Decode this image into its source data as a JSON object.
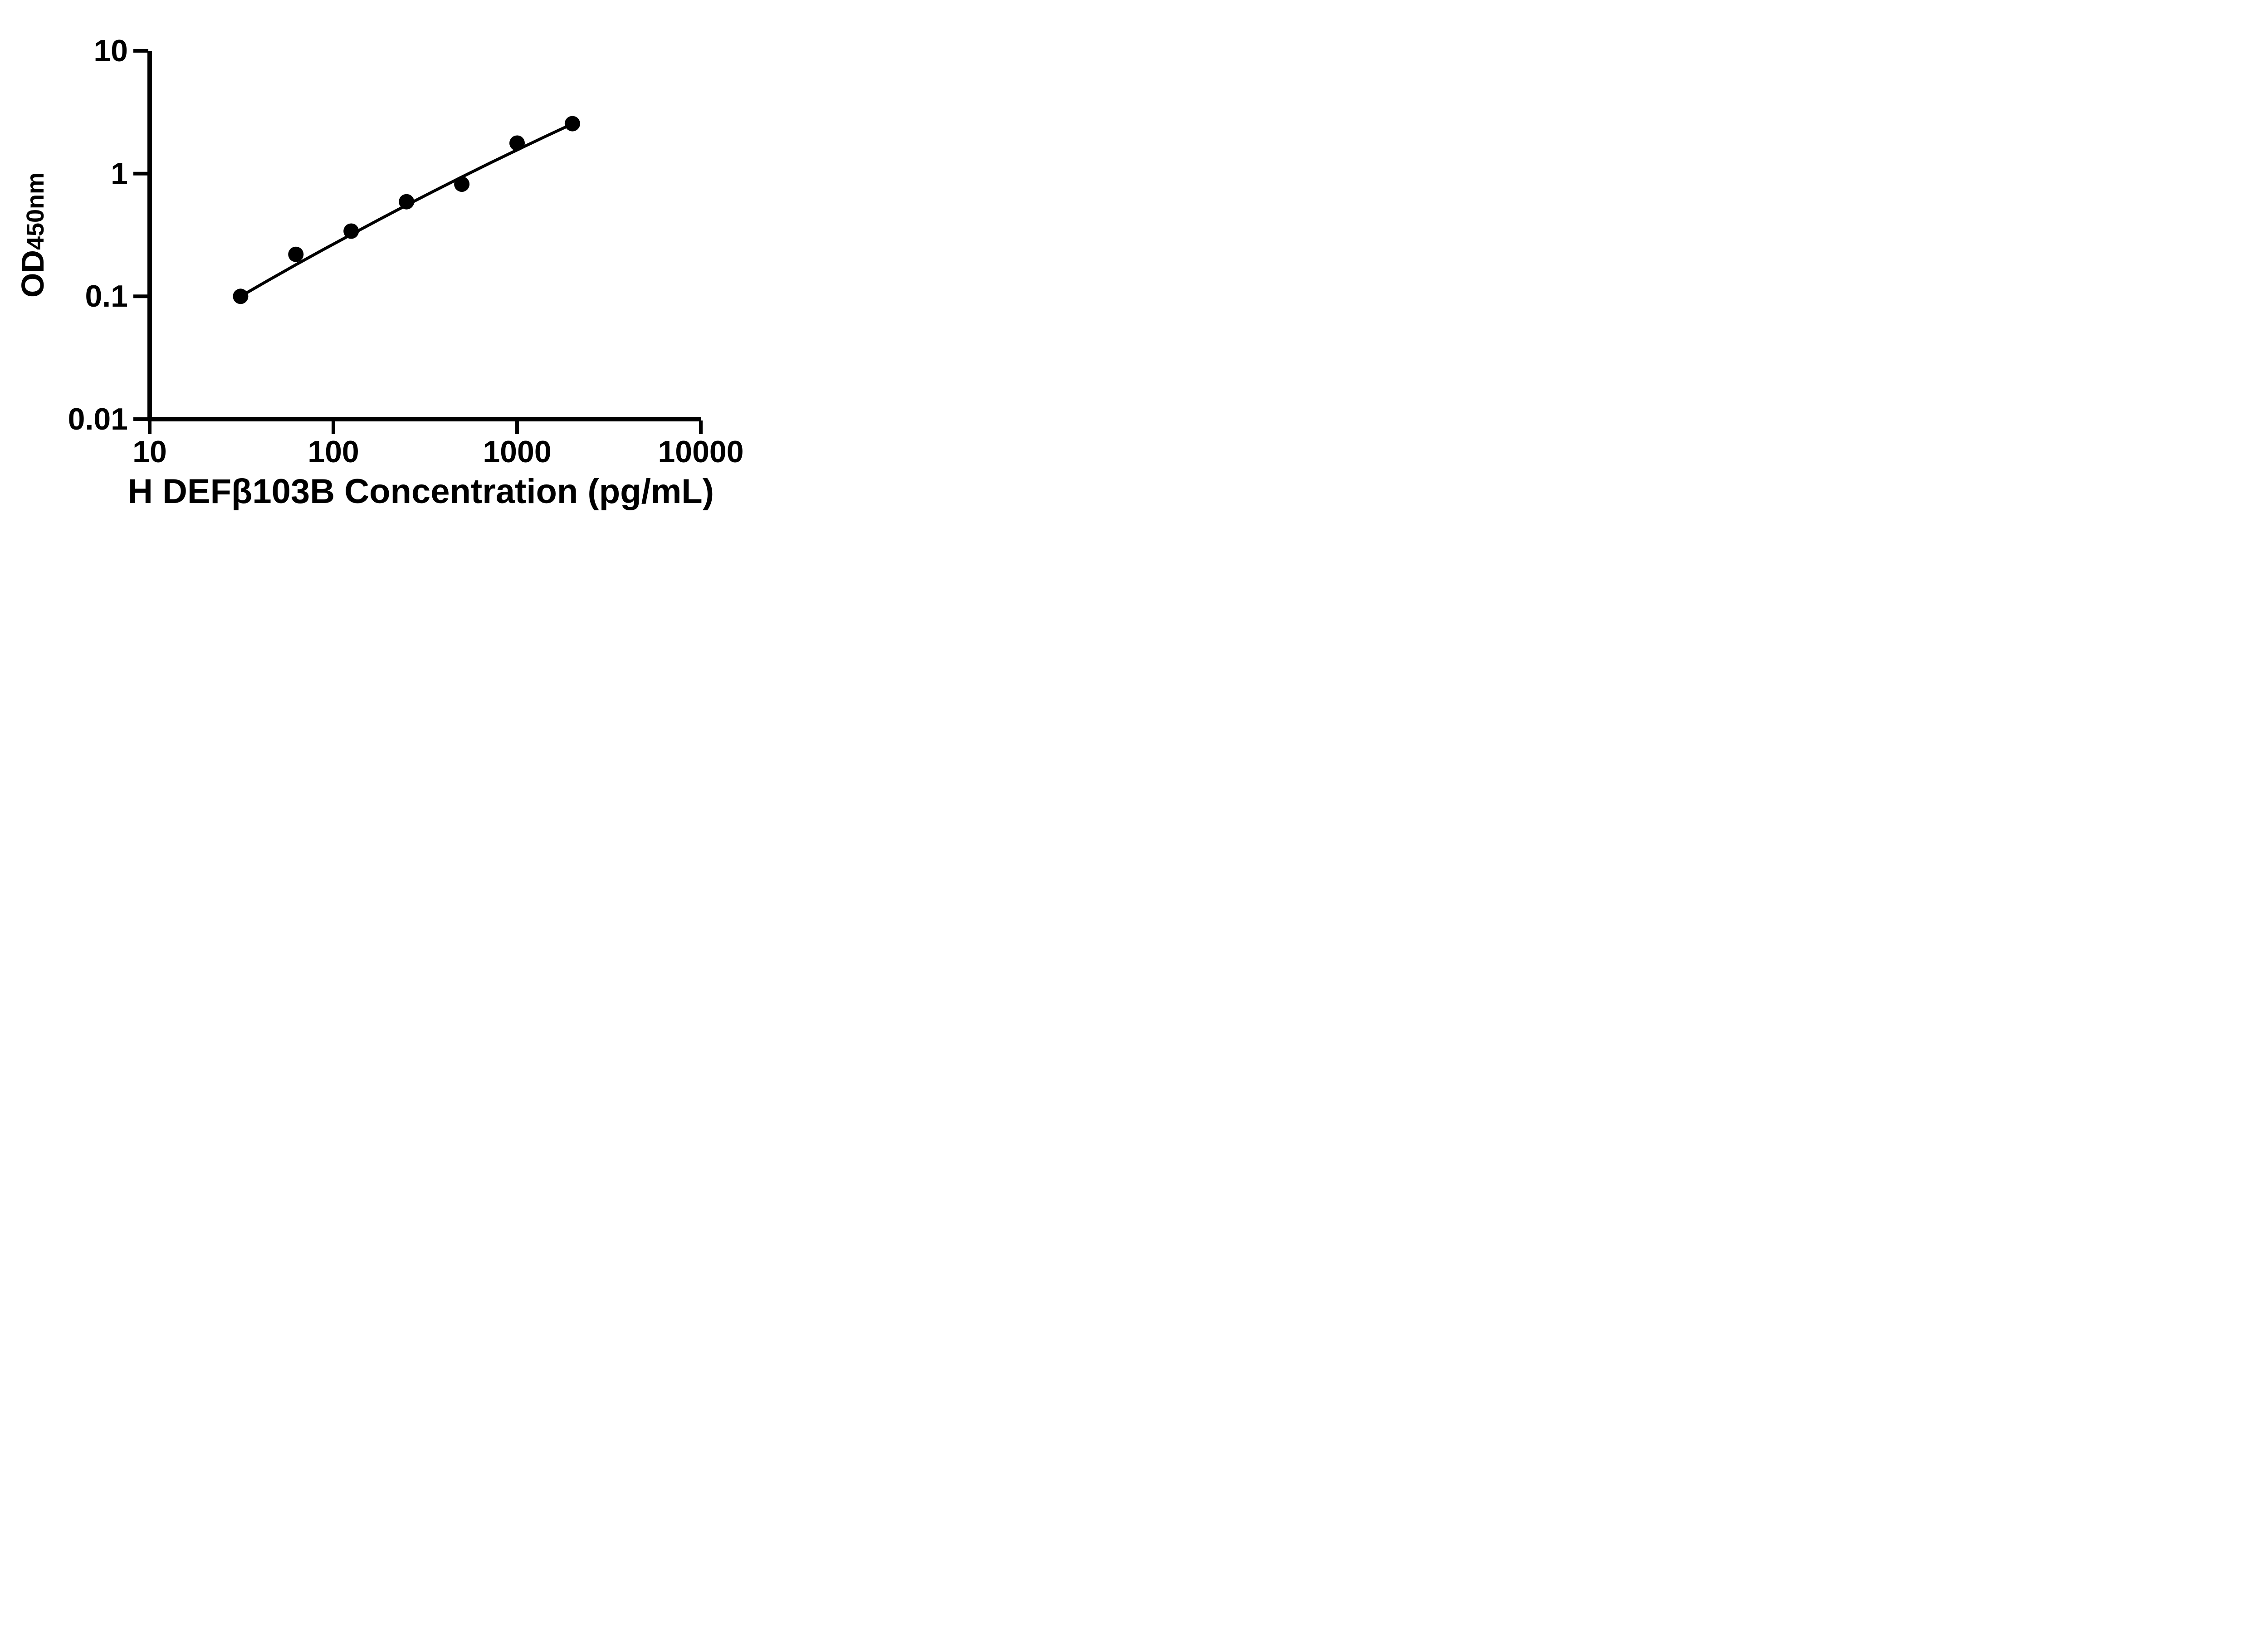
{
  "page": {
    "background_color": "#ffffff",
    "ink_color": "#000000"
  },
  "chart_data": {
    "type": "scatter",
    "title": "",
    "xlabel": "H DEFβ103B Concentration (pg/mL)",
    "ylabel": "OD450nm",
    "ylabel_main": "OD",
    "ylabel_sub": "450nm",
    "x_scale": "log10",
    "y_scale": "log10",
    "xlim": [
      10,
      10000
    ],
    "ylim": [
      0.01,
      10
    ],
    "grid": false,
    "legend": "none",
    "ink_color": "#000000",
    "x_ticks": [
      {
        "value": 10,
        "label": "10"
      },
      {
        "value": 100,
        "label": "100"
      },
      {
        "value": 1000,
        "label": "1000"
      },
      {
        "value": 10000,
        "label": "10000"
      }
    ],
    "y_ticks": [
      {
        "value": 10,
        "label": "10"
      },
      {
        "value": 1,
        "label": "1"
      },
      {
        "value": 0.1,
        "label": "0.1"
      },
      {
        "value": 0.01,
        "label": "0.01"
      }
    ],
    "series": [
      {
        "name": "fit-curve",
        "type": "line",
        "color": "#000000",
        "stroke_px": 6.5,
        "points": [
          {
            "x": 31.25,
            "y": 0.1
          },
          {
            "x": 44.2,
            "y": 0.135
          },
          {
            "x": 62.5,
            "y": 0.181
          },
          {
            "x": 88.4,
            "y": 0.241
          },
          {
            "x": 125,
            "y": 0.319
          },
          {
            "x": 176.8,
            "y": 0.421
          },
          {
            "x": 250,
            "y": 0.553
          },
          {
            "x": 353.6,
            "y": 0.722
          },
          {
            "x": 500,
            "y": 0.938
          },
          {
            "x": 707.1,
            "y": 1.212
          },
          {
            "x": 1000,
            "y": 1.558
          },
          {
            "x": 1414.2,
            "y": 1.994
          },
          {
            "x": 2000,
            "y": 2.54
          }
        ]
      },
      {
        "name": "standard-points",
        "type": "scatter",
        "color": "#000000",
        "marker": "circle",
        "marker_radius_px": 17,
        "points": [
          {
            "x": 31.25,
            "y": 0.1
          },
          {
            "x": 62.5,
            "y": 0.22
          },
          {
            "x": 125,
            "y": 0.34
          },
          {
            "x": 250,
            "y": 0.59
          },
          {
            "x": 500,
            "y": 0.82
          },
          {
            "x": 1000,
            "y": 1.77
          },
          {
            "x": 2000,
            "y": 2.55
          }
        ]
      }
    ]
  }
}
